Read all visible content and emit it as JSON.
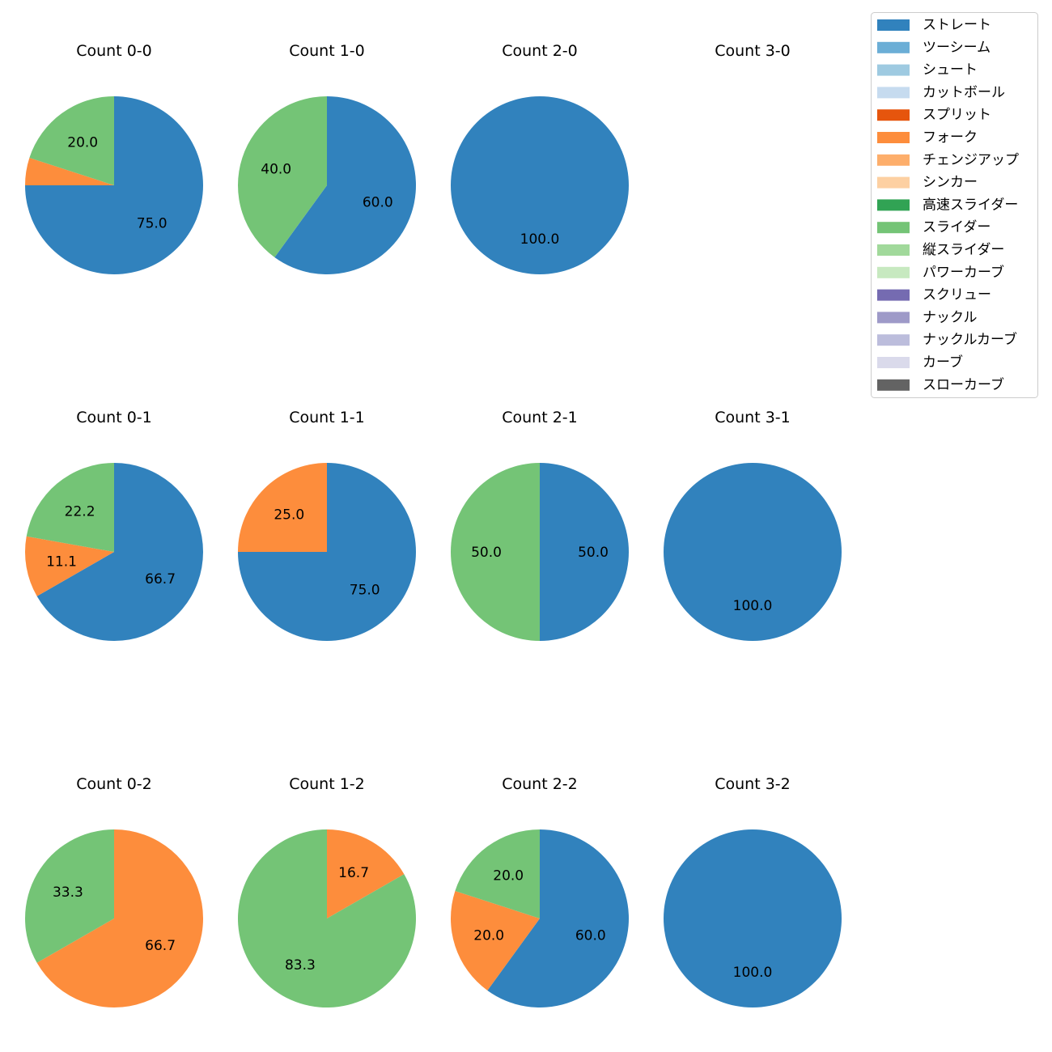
{
  "chart_data": {
    "type": "pie",
    "legend_position": "top-right",
    "legend": [
      {
        "label": "ストレート",
        "color": "#3182bd"
      },
      {
        "label": "ツーシーム",
        "color": "#6baed6"
      },
      {
        "label": "シュート",
        "color": "#9ecae1"
      },
      {
        "label": "カットボール",
        "color": "#c6dbef"
      },
      {
        "label": "スプリット",
        "color": "#e6550d"
      },
      {
        "label": "フォーク",
        "color": "#fd8d3c"
      },
      {
        "label": "チェンジアップ",
        "color": "#fdae6b"
      },
      {
        "label": "シンカー",
        "color": "#fdd0a2"
      },
      {
        "label": "高速スライダー",
        "color": "#31a354"
      },
      {
        "label": "スライダー",
        "color": "#74c476"
      },
      {
        "label": "縦スライダー",
        "color": "#a1d99b"
      },
      {
        "label": "パワーカーブ",
        "color": "#c7e9c0"
      },
      {
        "label": "スクリュー",
        "color": "#756bb1"
      },
      {
        "label": "ナックル",
        "color": "#9e9ac8"
      },
      {
        "label": "ナックルカーブ",
        "color": "#bcbddc"
      },
      {
        "label": "カーブ",
        "color": "#dadaeb"
      },
      {
        "label": "スローカーブ",
        "color": "#636363"
      }
    ],
    "charts": [
      {
        "title": "Count 0-0",
        "slices": [
          {
            "label": "ストレート",
            "value": 75.0,
            "text": "75.0"
          },
          {
            "label": "フォーク",
            "value": 5.0,
            "text": ""
          },
          {
            "label": "スライダー",
            "value": 20.0,
            "text": "20.0"
          }
        ]
      },
      {
        "title": "Count 1-0",
        "slices": [
          {
            "label": "ストレート",
            "value": 60.0,
            "text": "60.0"
          },
          {
            "label": "スライダー",
            "value": 40.0,
            "text": "40.0"
          }
        ]
      },
      {
        "title": "Count 2-0",
        "slices": [
          {
            "label": "ストレート",
            "value": 100.0,
            "text": "100.0"
          }
        ]
      },
      {
        "title": "Count 3-0",
        "slices": []
      },
      {
        "title": "Count 0-1",
        "slices": [
          {
            "label": "ストレート",
            "value": 66.7,
            "text": "66.7"
          },
          {
            "label": "フォーク",
            "value": 11.1,
            "text": "11.1"
          },
          {
            "label": "スライダー",
            "value": 22.2,
            "text": "22.2"
          }
        ]
      },
      {
        "title": "Count 1-1",
        "slices": [
          {
            "label": "ストレート",
            "value": 75.0,
            "text": "75.0"
          },
          {
            "label": "フォーク",
            "value": 25.0,
            "text": "25.0"
          }
        ]
      },
      {
        "title": "Count 2-1",
        "slices": [
          {
            "label": "ストレート",
            "value": 50.0,
            "text": "50.0"
          },
          {
            "label": "スライダー",
            "value": 50.0,
            "text": "50.0"
          }
        ]
      },
      {
        "title": "Count 3-1",
        "slices": [
          {
            "label": "ストレート",
            "value": 100.0,
            "text": "100.0"
          }
        ]
      },
      {
        "title": "Count 0-2",
        "slices": [
          {
            "label": "フォーク",
            "value": 66.7,
            "text": "66.7"
          },
          {
            "label": "スライダー",
            "value": 33.3,
            "text": "33.3"
          }
        ]
      },
      {
        "title": "Count 1-2",
        "slices": [
          {
            "label": "フォーク",
            "value": 16.7,
            "text": "16.7"
          },
          {
            "label": "スライダー",
            "value": 83.3,
            "text": "83.3"
          }
        ]
      },
      {
        "title": "Count 2-2",
        "slices": [
          {
            "label": "ストレート",
            "value": 60.0,
            "text": "60.0"
          },
          {
            "label": "フォーク",
            "value": 20.0,
            "text": "20.0"
          },
          {
            "label": "スライダー",
            "value": 20.0,
            "text": "20.0"
          }
        ]
      },
      {
        "title": "Count 3-2",
        "slices": [
          {
            "label": "ストレート",
            "value": 100.0,
            "text": "100.0"
          }
        ]
      }
    ]
  }
}
